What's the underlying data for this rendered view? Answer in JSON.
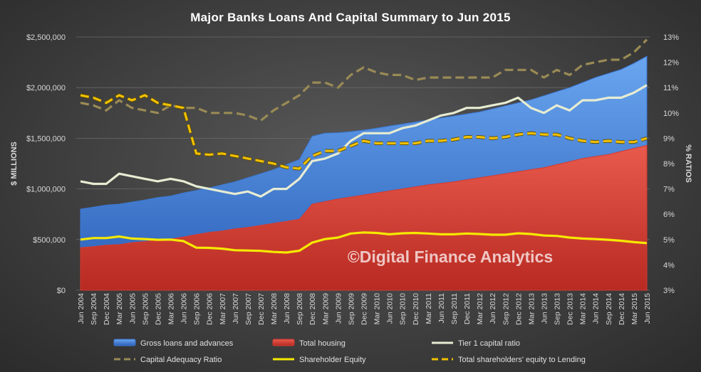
{
  "chart_data": {
    "type": "area",
    "title": "Major Banks Loans And Capital Summary to Jun 2015",
    "ylabel": "$ MILLIONS",
    "y2label": "% RATIOS",
    "watermark": "©Digital Finance Analytics",
    "ylim": [
      0,
      2500000
    ],
    "y2lim": [
      3,
      13
    ],
    "yticks": [
      "$0",
      "$500,000",
      "$1,000,000",
      "$1,500,000",
      "$2,000,000",
      "$2,500,000"
    ],
    "y2ticks": [
      "3%",
      "4%",
      "5%",
      "6%",
      "7%",
      "8%",
      "9%",
      "10%",
      "11%",
      "12%",
      "13%"
    ],
    "grid": true,
    "legend_position": "bottom",
    "categories": [
      "Jun 2004",
      "Sep 2004",
      "Dec 2004",
      "Mar 2005",
      "Jun 2005",
      "Sep 2005",
      "Dec 2005",
      "Mar 2006",
      "Jun 2006",
      "Sep 2006",
      "Dec 2006",
      "Mar 2007",
      "Jun 2007",
      "Sep 2007",
      "Dec 2007",
      "Mar 2008",
      "Jun 2008",
      "Sep 2008",
      "Dec 2008",
      "Mar 2009",
      "Jun 2009",
      "Sep 2009",
      "Dec 2009",
      "Mar 2010",
      "Jun 2010",
      "Sep 2010",
      "Dec 2010",
      "Mar 2011",
      "Jun 2011",
      "Sep 2011",
      "Dec 2011",
      "Mar 2012",
      "Jun 2012",
      "Sep 2012",
      "Dec 2012",
      "Mar 2013",
      "Jun 2013",
      "Sep 2013",
      "Dec 2013",
      "Mar 2014",
      "Jun 2014",
      "Sep 2014",
      "Dec 2014",
      "Mar 2015",
      "Jun 2015"
    ],
    "series": [
      {
        "name": "Gross loans and advances",
        "kind": "area",
        "axis": "left",
        "color": "#3a78d4",
        "values": [
          800000,
          820000,
          840000,
          850000,
          870000,
          890000,
          915000,
          930000,
          960000,
          985000,
          1010000,
          1040000,
          1070000,
          1110000,
          1150000,
          1190000,
          1240000,
          1290000,
          1520000,
          1550000,
          1555000,
          1565000,
          1580000,
          1600000,
          1620000,
          1640000,
          1660000,
          1680000,
          1700000,
          1720000,
          1740000,
          1760000,
          1790000,
          1820000,
          1850000,
          1880000,
          1920000,
          1960000,
          2000000,
          2050000,
          2100000,
          2140000,
          2180000,
          2240000,
          2310000
        ]
      },
      {
        "name": "Total housing",
        "kind": "area",
        "axis": "left",
        "color": "#d43a2f",
        "values": [
          420000,
          430000,
          445000,
          450000,
          470000,
          480000,
          495000,
          505000,
          525000,
          550000,
          570000,
          585000,
          605000,
          620000,
          640000,
          660000,
          680000,
          700000,
          850000,
          875000,
          900000,
          920000,
          940000,
          960000,
          980000,
          1000000,
          1020000,
          1040000,
          1055000,
          1070000,
          1090000,
          1110000,
          1130000,
          1150000,
          1170000,
          1190000,
          1210000,
          1240000,
          1270000,
          1300000,
          1320000,
          1340000,
          1370000,
          1400000,
          1430000
        ]
      },
      {
        "name": "Tier 1 capital ratio",
        "kind": "line",
        "axis": "right",
        "color": "#e6ecd2",
        "values": [
          7.3,
          7.2,
          7.2,
          7.6,
          7.5,
          7.4,
          7.3,
          7.4,
          7.3,
          7.1,
          7.0,
          6.9,
          6.8,
          6.9,
          6.7,
          7.0,
          7.0,
          7.4,
          8.1,
          8.2,
          8.4,
          8.9,
          9.2,
          9.2,
          9.2,
          9.4,
          9.5,
          9.7,
          9.9,
          10.0,
          10.2,
          10.2,
          10.3,
          10.4,
          10.6,
          10.2,
          10.0,
          10.3,
          10.1,
          10.5,
          10.5,
          10.6,
          10.6,
          10.8,
          11.1
        ]
      },
      {
        "name": "Capital Adequacy Ratio",
        "kind": "dashed",
        "axis": "right",
        "color": "#9a8a55",
        "values": [
          10.4,
          10.3,
          10.1,
          10.5,
          10.2,
          10.1,
          10.0,
          10.3,
          10.2,
          10.2,
          10.0,
          10.0,
          10.0,
          9.9,
          9.7,
          10.1,
          10.4,
          10.7,
          11.2,
          11.2,
          11.0,
          11.5,
          11.8,
          11.6,
          11.5,
          11.5,
          11.3,
          11.4,
          11.4,
          11.4,
          11.4,
          11.4,
          11.4,
          11.7,
          11.7,
          11.7,
          11.4,
          11.7,
          11.5,
          11.9,
          12.0,
          12.1,
          12.1,
          12.4,
          12.9
        ]
      },
      {
        "name": "Shareholder Equity",
        "kind": "line",
        "axis": "left",
        "color": "#f5e900",
        "values": [
          500000,
          515000,
          515000,
          530000,
          510000,
          505000,
          498000,
          500000,
          485000,
          420000,
          418000,
          410000,
          395000,
          392000,
          388000,
          378000,
          372000,
          390000,
          470000,
          505000,
          520000,
          560000,
          570000,
          565000,
          552000,
          562000,
          565000,
          560000,
          552000,
          552000,
          560000,
          555000,
          548000,
          548000,
          562000,
          555000,
          540000,
          536000,
          520000,
          510000,
          505000,
          498000,
          488000,
          475000,
          465000
        ]
      },
      {
        "name": "Total shareholders' equity to Lending",
        "kind": "dashed",
        "axis": "right",
        "color": "#f0c000",
        "values": [
          10.7,
          10.6,
          10.4,
          10.7,
          10.5,
          10.7,
          10.4,
          10.3,
          10.2,
          8.4,
          8.35,
          8.4,
          8.3,
          8.2,
          8.1,
          8.0,
          7.85,
          7.8,
          8.3,
          8.5,
          8.5,
          8.7,
          8.9,
          8.8,
          8.8,
          8.8,
          8.8,
          8.9,
          8.9,
          8.95,
          9.05,
          9.05,
          9.0,
          9.05,
          9.15,
          9.2,
          9.15,
          9.15,
          9.0,
          8.9,
          8.85,
          8.9,
          8.85,
          8.85,
          9.0
        ]
      }
    ]
  }
}
